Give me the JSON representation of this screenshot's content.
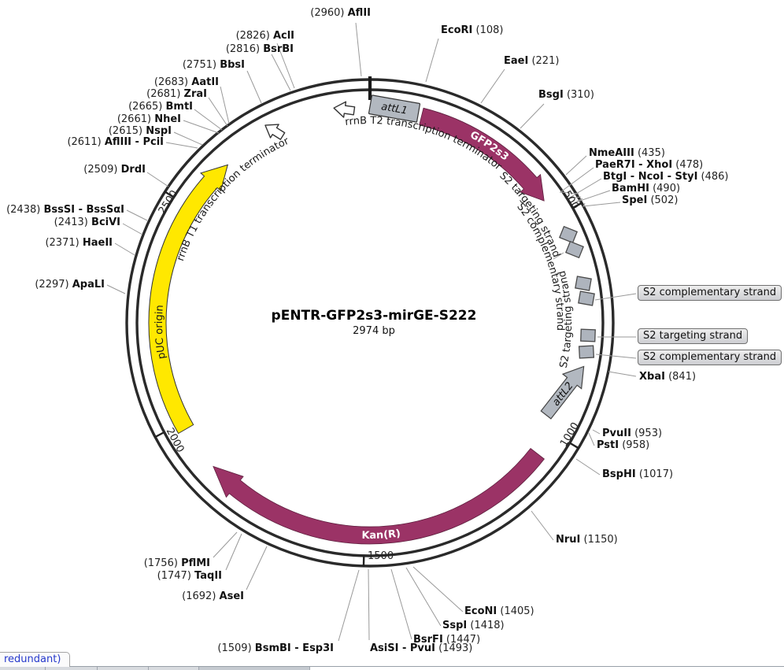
{
  "title": {
    "name": "pENTR-GFP2s3-mirGE-S222",
    "size": "2974 bp"
  },
  "colors": {
    "maroon": "#9B3366",
    "yellow": "#FFE800",
    "att_gray": "#b2b8c0",
    "ring": "#2a2a2a"
  },
  "plasmid": {
    "ticks": [
      "500",
      "1000",
      "1500",
      "2000",
      "2500"
    ],
    "features": {
      "attl1": "attL1",
      "attl2": "attL2",
      "gfp2s3": "GFP2s3",
      "kanr": "Kan(R)",
      "puc_origin": "pUC origin",
      "rrnb_t1": "rrnB T1 transcription terminator",
      "rrnb_t2": "rrnB T2 transcription terminator",
      "s2_targeting_upper": "S2 targeting strand",
      "s2_complementary_upper": "S2 complementary strand",
      "s2_targeting_lower": "S2 targeting strand"
    }
  },
  "boxed_labels": [
    "S2 complementary strand",
    "S2 targeting strand",
    "S2 complementary strand"
  ],
  "sites_left": [
    {
      "pos": "(2960)",
      "name": "AflII"
    },
    {
      "pos": "(2826)",
      "name": "AclI"
    },
    {
      "pos": "(2816)",
      "name": "BsrBI"
    },
    {
      "pos": "(2751)",
      "name": "BbsI"
    },
    {
      "pos": "(2683)",
      "name": "AatII"
    },
    {
      "pos": "(2681)",
      "name": "ZraI"
    },
    {
      "pos": "(2665)",
      "name": "BmtI"
    },
    {
      "pos": "(2661)",
      "name": "NheI"
    },
    {
      "pos": "(2615)",
      "name": "NspI"
    },
    {
      "pos": "(2611)",
      "name": "AflIII - PciI"
    },
    {
      "pos": "(2509)",
      "name": "DrdI"
    },
    {
      "pos": "(2438)",
      "name": "BssSI - BssSαI"
    },
    {
      "pos": "(2413)",
      "name": "BciVI"
    },
    {
      "pos": "(2371)",
      "name": "HaeII"
    },
    {
      "pos": "(2297)",
      "name": "ApaLI"
    },
    {
      "pos": "(1756)",
      "name": "PflMI"
    },
    {
      "pos": "(1747)",
      "name": "TaqII"
    },
    {
      "pos": "(1692)",
      "name": "AseI"
    },
    {
      "pos": "(1509)",
      "name": "BsmBI - Esp3I"
    }
  ],
  "sites_right": [
    {
      "name": "EcoRI",
      "pos": "(108)"
    },
    {
      "name": "EaeI",
      "pos": "(221)"
    },
    {
      "name": "BsgI",
      "pos": "(310)"
    },
    {
      "name": "NmeAIII",
      "pos": "(435)"
    },
    {
      "name": "PaeR7I - XhoI",
      "pos": "(478)"
    },
    {
      "name": "BtgI - NcoI - StyI",
      "pos": "(486)"
    },
    {
      "name": "BamHI",
      "pos": "(490)"
    },
    {
      "name": "SpeI",
      "pos": "(502)"
    },
    {
      "name": "XbaI",
      "pos": "(841)"
    },
    {
      "name": "PvuII",
      "pos": "(953)"
    },
    {
      "name": "PstI",
      "pos": "(958)"
    },
    {
      "name": "BspHI",
      "pos": "(1017)"
    },
    {
      "name": "NruI",
      "pos": "(1150)"
    },
    {
      "name": "EcoNI",
      "pos": "(1405)"
    },
    {
      "name": "SspI",
      "pos": "(1418)"
    },
    {
      "name": "BsrFI",
      "pos": "(1447)"
    },
    {
      "name": "AsiSI - PvuI",
      "pos": "(1493)"
    }
  ],
  "statusbar": {
    "tab": "redundant)"
  }
}
